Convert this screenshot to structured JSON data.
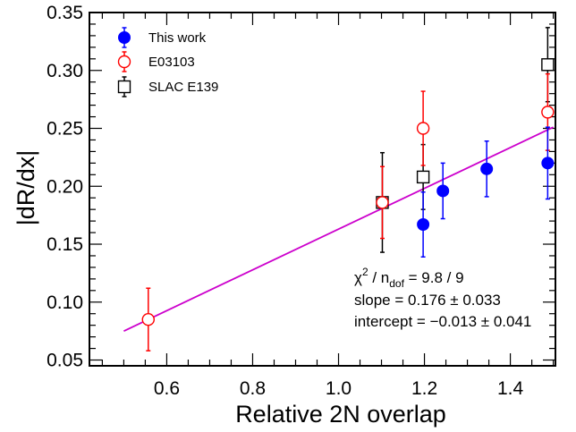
{
  "chart_data": {
    "type": "scatter",
    "title": "",
    "xlabel": "Relative 2N overlap",
    "ylabel": "|dR/dx|",
    "xlim": [
      0.42,
      1.505
    ],
    "ylim": [
      0.045,
      0.35
    ],
    "xticks": [
      "0.6",
      "0.8",
      "1.0",
      "1.2",
      "1.4"
    ],
    "yticks": [
      "0.05",
      "0.10",
      "0.15",
      "0.20",
      "0.25",
      "0.30",
      "0.35"
    ],
    "grid": false,
    "legend_position": "top-left",
    "series": [
      {
        "name": "This work",
        "color": "#0000ff",
        "marker": "filled-circle",
        "points": [
          {
            "x": 1.197,
            "y": 0.167,
            "err": 0.028
          },
          {
            "x": 1.243,
            "y": 0.196,
            "err": 0.024
          },
          {
            "x": 1.345,
            "y": 0.215,
            "err": 0.024
          },
          {
            "x": 1.487,
            "y": 0.22,
            "err": 0.031
          }
        ]
      },
      {
        "name": "E03103",
        "color": "#ff0000",
        "marker": "open-circle",
        "points": [
          {
            "x": 0.557,
            "y": 0.085,
            "err": 0.027
          },
          {
            "x": 1.102,
            "y": 0.186,
            "err": 0.031
          },
          {
            "x": 1.197,
            "y": 0.25,
            "err": 0.032
          },
          {
            "x": 1.487,
            "y": 0.264,
            "err": 0.033
          }
        ]
      },
      {
        "name": "SLAC E139",
        "color": "#000000",
        "marker": "open-square",
        "points": [
          {
            "x": 1.102,
            "y": 0.186,
            "err": 0.043
          },
          {
            "x": 1.197,
            "y": 0.208,
            "err": 0.028
          },
          {
            "x": 1.487,
            "y": 0.305,
            "err": 0.032
          }
        ]
      }
    ],
    "fit_line": {
      "color": "#cc00cc",
      "x": [
        0.5,
        1.5
      ],
      "y": [
        0.075,
        0.251
      ]
    },
    "annotations": {
      "chi2_prefix": "χ",
      "chi2_sup": "2",
      "chi2_mid": " / n",
      "chi2_sub": "dof",
      "chi2_value": " = 9.8 / 9",
      "slope": "slope = 0.176 ± 0.033",
      "intercept": "intercept = −0.013 ± 0.041"
    }
  }
}
